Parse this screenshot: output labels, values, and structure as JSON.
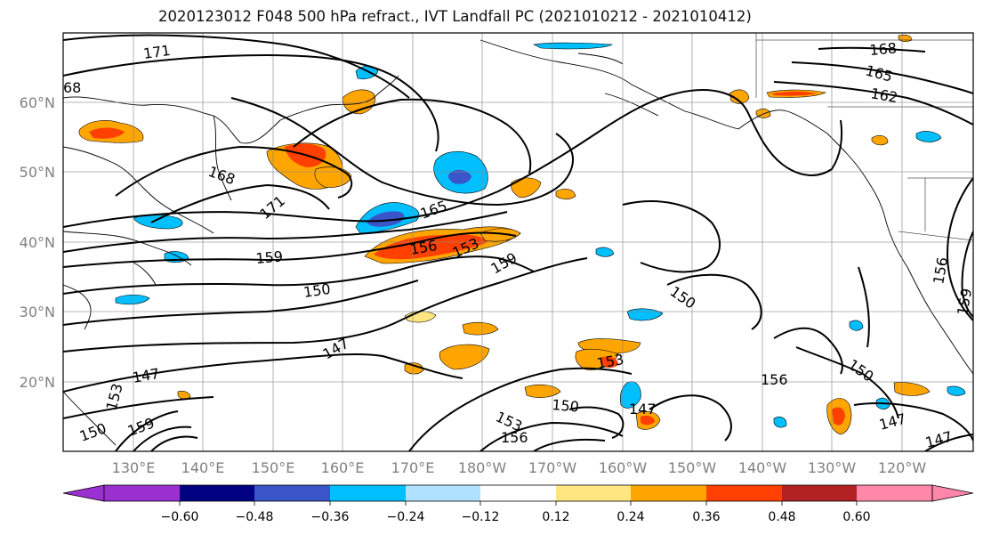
{
  "title": "2020123012 F048 500 hPa refract., IVT Landfall PC (2021010212 - 2021010412)",
  "map": {
    "lat_ticks": [
      "60°N",
      "50°N",
      "40°N",
      "30°N",
      "20°N"
    ],
    "lon_ticks": [
      "130°E",
      "140°E",
      "150°E",
      "160°E",
      "170°E",
      "180°W",
      "170°W",
      "160°W",
      "150°W",
      "140°W",
      "130°W",
      "120°W"
    ],
    "grid": true,
    "contour_color": "#000000",
    "contour_labels": [
      "171",
      "68",
      "168",
      "171",
      "165",
      "156",
      "153",
      "159",
      "159",
      "150",
      "147",
      "147",
      "153",
      "150",
      "147",
      "153",
      "156",
      "153",
      "150",
      "147",
      "147",
      "150",
      "156",
      "168",
      "165",
      "162",
      "156",
      "159",
      "159",
      "150"
    ]
  },
  "colorbar": {
    "ticks": [
      "−0.60",
      "−0.48",
      "−0.36",
      "−0.24",
      "−0.12",
      "0.12",
      "0.24",
      "0.36",
      "0.48",
      "0.60"
    ],
    "colors": [
      "#9b30d0",
      "#000080",
      "#3a55c8",
      "#00bfff",
      "#b0e2ff",
      "#ffffff",
      "#ffe680",
      "#ffa500",
      "#ff4000",
      "#b22222",
      "#ff88aa"
    ]
  }
}
